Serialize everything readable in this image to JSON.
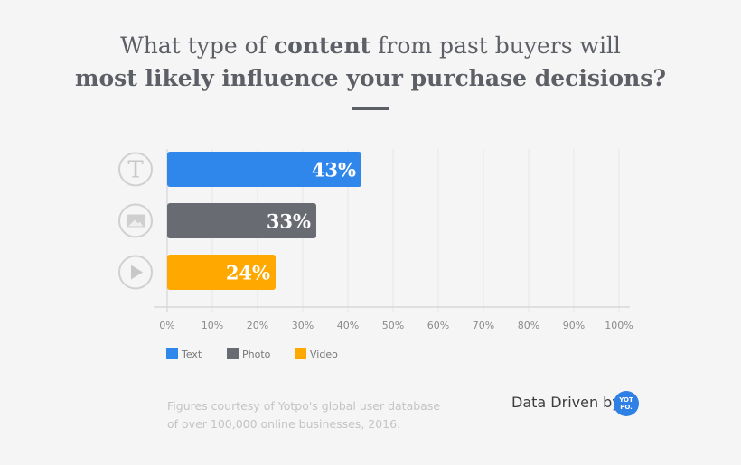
{
  "title": {
    "line1_pre": "What type of ",
    "line1_bold": "content",
    "line1_post": " from past buyers will",
    "line2": "most likely influence your purchase decisions?"
  },
  "chart_data": {
    "type": "bar",
    "orientation": "horizontal",
    "categories": [
      "Text",
      "Photo",
      "Video"
    ],
    "values": [
      43,
      33,
      24
    ],
    "data_labels": [
      "43%",
      "33%",
      "24%"
    ],
    "colors": [
      "#2f86eb",
      "#696b73",
      "#ffa800"
    ],
    "icons": [
      "text-icon",
      "image-icon",
      "play-icon"
    ],
    "xlim": [
      0,
      100
    ],
    "xticks": [
      "0%",
      "10%",
      "20%",
      "30%",
      "40%",
      "50%",
      "60%",
      "70%",
      "80%",
      "90%",
      "100%"
    ],
    "grid": true,
    "legend": {
      "entries": [
        "Text",
        "Photo",
        "Video"
      ],
      "placement": "bottom-left"
    }
  },
  "footer": {
    "line1": "Figures courtesy of Yotpo's global user database",
    "line2": "of over 100,000 online businesses, 2016.",
    "brand": "Data Driven by",
    "logo_text": "YOT PO."
  }
}
